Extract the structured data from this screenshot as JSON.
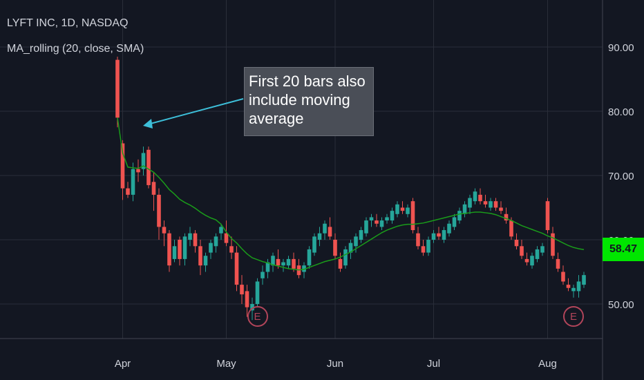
{
  "header": {
    "symbol_title": "LYFT INC, 1D, NASDAQ",
    "indicator_label": "MA_rolling (20, close, SMA)"
  },
  "annotation": {
    "text": "First 20 bars also include moving average"
  },
  "price_badge": {
    "value": "58.47",
    "color": "#00e600"
  },
  "earnings_markers": [
    {
      "label": "E",
      "date_index": 27
    },
    {
      "label": "E",
      "date_index": 88
    }
  ],
  "colors": {
    "background": "#131722",
    "up": "#26a69a",
    "down": "#ef5350",
    "ma": "#1a9c1a",
    "arrow": "#3dbfd9",
    "grid": "#2a2e39"
  },
  "chart_data": {
    "type": "candlestick",
    "title": "LYFT INC, 1D, NASDAQ",
    "ylim": [
      44,
      96
    ],
    "yticks": [
      "50.00",
      "60.00",
      "70.00",
      "80.00",
      "90.00"
    ],
    "xticks": [
      {
        "label": "Apr",
        "index": 1
      },
      {
        "label": "May",
        "index": 21
      },
      {
        "label": "Jun",
        "index": 42
      },
      {
        "label": "Jul",
        "index": 61
      },
      {
        "label": "Aug",
        "index": 83
      }
    ],
    "ohlc": [
      [
        88,
        88.5,
        77.5,
        79
      ],
      [
        75,
        75.5,
        66.2,
        68
      ],
      [
        68,
        69,
        66.5,
        67
      ],
      [
        67,
        72,
        66,
        71
      ],
      [
        71,
        72.5,
        69,
        70.5
      ],
      [
        71,
        74.5,
        70,
        73.5
      ],
      [
        74,
        74.5,
        68,
        68.5
      ],
      [
        69,
        70.5,
        64.5,
        67
      ],
      [
        67,
        68,
        60,
        62
      ],
      [
        62,
        63,
        59,
        61
      ],
      [
        61,
        61.5,
        55,
        56
      ],
      [
        57,
        60,
        56.5,
        59
      ],
      [
        60,
        60.5,
        56,
        57
      ],
      [
        57,
        61,
        56,
        60.5
      ],
      [
        60,
        62,
        59,
        61
      ],
      [
        61,
        61.5,
        58,
        59
      ],
      [
        59,
        60,
        54.5,
        56
      ],
      [
        56,
        58,
        55,
        57.5
      ],
      [
        58,
        60,
        57,
        59.5
      ],
      [
        59,
        61,
        58,
        60.5
      ],
      [
        61,
        62.5,
        60,
        62
      ],
      [
        61,
        63,
        59,
        59.5
      ],
      [
        59,
        60.5,
        57,
        58
      ],
      [
        58,
        59,
        52,
        53
      ],
      [
        53,
        54.5,
        50,
        51.5
      ],
      [
        52,
        53,
        48,
        49.5
      ],
      [
        49,
        51,
        47.5,
        50
      ],
      [
        50,
        54,
        49.5,
        53.5
      ],
      [
        54,
        56,
        53,
        55
      ],
      [
        55,
        57,
        54,
        56.5
      ],
      [
        56,
        58,
        55,
        57.5
      ],
      [
        57,
        58.5,
        55.5,
        56
      ],
      [
        56,
        57,
        55,
        56.5
      ],
      [
        56,
        57.5,
        55.5,
        57
      ],
      [
        57,
        58,
        55,
        55.5
      ],
      [
        56,
        57,
        54,
        54.5
      ],
      [
        55,
        56.5,
        54,
        56
      ],
      [
        56,
        59,
        55.5,
        58.5
      ],
      [
        58,
        61,
        57.5,
        60.5
      ],
      [
        60,
        62,
        59,
        61
      ],
      [
        61,
        63,
        60,
        62.5
      ],
      [
        62,
        63.5,
        60,
        60.5
      ],
      [
        60,
        61,
        57,
        57.5
      ],
      [
        57,
        58,
        55,
        55.5
      ],
      [
        56,
        59,
        55.5,
        58.5
      ],
      [
        58,
        60,
        57,
        59.5
      ],
      [
        59,
        61,
        58,
        60.5
      ],
      [
        60,
        62,
        59.5,
        61.5
      ],
      [
        61,
        63.5,
        60.5,
        63
      ],
      [
        63,
        64,
        62,
        63.5
      ],
      [
        63,
        64,
        62,
        62.5
      ],
      [
        62,
        63.5,
        61.5,
        63
      ],
      [
        63,
        64,
        62.5,
        63.5
      ],
      [
        63,
        65,
        62.5,
        64.5
      ],
      [
        64,
        66,
        63.5,
        65.5
      ],
      [
        65,
        66,
        64,
        64.5
      ],
      [
        64,
        65.5,
        63.5,
        65
      ],
      [
        66,
        66.5,
        61,
        61.5
      ],
      [
        61,
        62,
        58.5,
        59
      ],
      [
        59,
        60,
        57.5,
        58
      ],
      [
        58,
        60.5,
        57.5,
        60
      ],
      [
        60,
        61.5,
        59.5,
        61
      ],
      [
        61,
        62,
        60,
        60.5
      ],
      [
        60,
        62,
        59.5,
        61.5
      ],
      [
        61,
        63,
        60.5,
        62.5
      ],
      [
        62,
        64,
        61.5,
        63.5
      ],
      [
        63,
        65,
        62.5,
        64.5
      ],
      [
        64,
        66,
        63.5,
        65.5
      ],
      [
        65,
        67,
        64,
        66.5
      ],
      [
        66,
        68,
        65.5,
        67.5
      ],
      [
        67,
        68,
        65.5,
        66
      ],
      [
        66,
        67,
        65,
        65.5
      ],
      [
        65,
        66.5,
        64.5,
        66
      ],
      [
        66,
        66.5,
        64.5,
        65
      ],
      [
        65,
        66,
        64,
        64.5
      ],
      [
        64,
        65,
        62.5,
        63
      ],
      [
        63,
        63.5,
        60,
        60.5
      ],
      [
        60,
        61,
        58.5,
        59
      ],
      [
        59,
        60,
        57,
        57.5
      ],
      [
        57,
        58,
        56,
        56.5
      ],
      [
        56,
        58,
        55.5,
        57.5
      ],
      [
        57,
        59,
        56.5,
        58.5
      ],
      [
        58,
        59.5,
        57.5,
        59
      ],
      [
        66,
        66.5,
        61,
        61.5
      ],
      [
        61,
        62,
        57,
        57.5
      ],
      [
        57,
        58,
        55,
        55.5
      ],
      [
        55,
        56,
        53,
        53.5
      ],
      [
        53,
        54,
        52,
        52.5
      ],
      [
        52,
        53,
        51,
        52.5
      ],
      [
        52,
        54.5,
        51,
        53.5
      ],
      [
        53,
        55,
        52.5,
        54.5
      ]
    ],
    "ma": {
      "name": "MA_rolling (20, close, SMA)",
      "values": [
        79,
        73.5,
        71.3,
        71.2,
        71.1,
        71.5,
        71.0,
        70.5,
        69.7,
        68.8,
        67.8,
        67.1,
        66.3,
        65.8,
        65.4,
        64.9,
        64.3,
        63.8,
        63.4,
        63.1,
        62.4,
        61.2,
        60.2,
        59.5,
        58.6,
        57.8,
        57.2,
        56.9,
        56.6,
        56.4,
        56.1,
        55.9,
        55.7,
        55.5,
        55.4,
        55.3,
        55.4,
        55.7,
        56.0,
        56.3,
        56.6,
        56.8,
        57.0,
        57.3,
        57.7,
        58.1,
        58.6,
        59.1,
        59.6,
        60.1,
        60.6,
        61.1,
        61.5,
        61.8,
        62.1,
        62.3,
        62.4,
        62.4,
        62.5,
        62.6,
        62.8,
        63.0,
        63.2,
        63.4,
        63.6,
        63.8,
        64.0,
        64.1,
        64.2,
        64.3,
        64.3,
        64.2,
        64.1,
        63.9,
        63.6,
        63.3,
        63.0,
        62.6,
        62.2,
        61.9,
        61.6,
        61.3,
        61.0,
        60.6,
        60.3,
        59.9,
        59.5,
        59.1,
        58.8,
        58.6,
        58.47
      ]
    }
  }
}
